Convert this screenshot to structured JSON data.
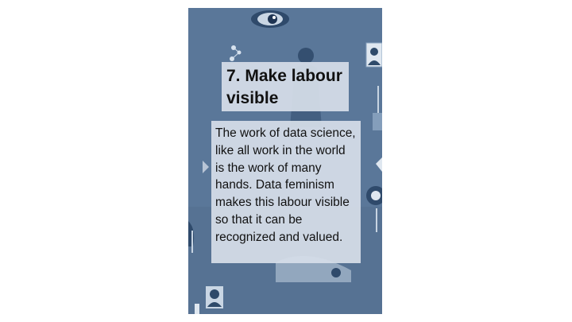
{
  "slide": {
    "title": "7. Make labour visible",
    "body": "The work of data science, like all work in the world is the work of many hands. Data feminism makes this labour visible so that it can be recognized and valued."
  },
  "colors": {
    "card_background": "#5a7799",
    "text_box_background": "#d6dee8",
    "text": "#111111"
  },
  "icons": [
    "eye-icon",
    "person-avatar-icon",
    "figure-silhouette-icon",
    "network-nodes-icon"
  ]
}
